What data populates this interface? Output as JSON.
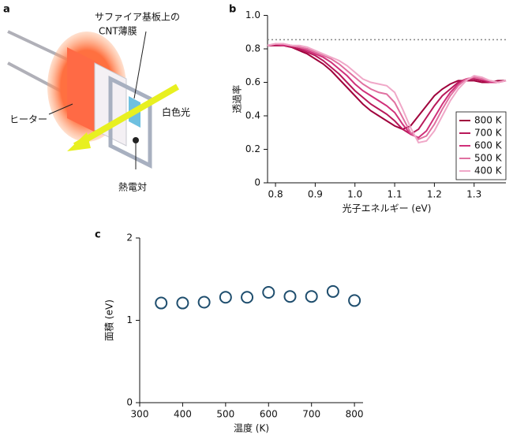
{
  "diagram": {
    "panel_label": "a",
    "substrate_label": [
      "サファイア基板上の",
      "CNT薄膜"
    ],
    "heater_label": "ヒーター",
    "light_label": "白色光",
    "thermocouple_label": "熱電対"
  },
  "chart_data": [
    {
      "type": "line",
      "panel_label": "b",
      "xlabel": "光子エネルギー (eV)",
      "ylabel": "透過率",
      "x": [
        0.78,
        0.8,
        0.82,
        0.84,
        0.86,
        0.88,
        0.9,
        0.92,
        0.94,
        0.96,
        0.98,
        1.0,
        1.02,
        1.04,
        1.06,
        1.08,
        1.1,
        1.12,
        1.14,
        1.16,
        1.18,
        1.2,
        1.22,
        1.24,
        1.26,
        1.28,
        1.3,
        1.32,
        1.34,
        1.36,
        1.38
      ],
      "series": [
        {
          "name": "800 K",
          "color": "#a0003c",
          "values": [
            0.82,
            0.82,
            0.82,
            0.81,
            0.79,
            0.77,
            0.74,
            0.71,
            0.67,
            0.62,
            0.57,
            0.52,
            0.47,
            0.43,
            0.4,
            0.37,
            0.34,
            0.32,
            0.34,
            0.4,
            0.46,
            0.52,
            0.56,
            0.59,
            0.61,
            0.61,
            0.61,
            0.6,
            0.6,
            0.61,
            0.61
          ]
        },
        {
          "name": "700 K",
          "color": "#b8185a",
          "values": [
            0.82,
            0.82,
            0.82,
            0.81,
            0.8,
            0.78,
            0.76,
            0.73,
            0.69,
            0.65,
            0.6,
            0.55,
            0.51,
            0.47,
            0.44,
            0.41,
            0.37,
            0.32,
            0.29,
            0.32,
            0.39,
            0.46,
            0.52,
            0.56,
            0.6,
            0.62,
            0.62,
            0.61,
            0.6,
            0.6,
            0.61
          ]
        },
        {
          "name": "600 K",
          "color": "#d0307a",
          "values": [
            0.82,
            0.83,
            0.82,
            0.82,
            0.81,
            0.79,
            0.77,
            0.75,
            0.72,
            0.68,
            0.64,
            0.59,
            0.55,
            0.52,
            0.49,
            0.46,
            0.42,
            0.35,
            0.29,
            0.27,
            0.31,
            0.39,
            0.47,
            0.54,
            0.59,
            0.62,
            0.63,
            0.62,
            0.6,
            0.6,
            0.61
          ]
        },
        {
          "name": "500 K",
          "color": "#e070a0",
          "values": [
            0.82,
            0.83,
            0.83,
            0.82,
            0.81,
            0.8,
            0.78,
            0.76,
            0.74,
            0.71,
            0.67,
            0.63,
            0.59,
            0.56,
            0.54,
            0.53,
            0.48,
            0.39,
            0.3,
            0.26,
            0.28,
            0.35,
            0.44,
            0.52,
            0.58,
            0.62,
            0.63,
            0.62,
            0.61,
            0.6,
            0.61
          ]
        },
        {
          "name": "400 K",
          "color": "#f0a8c8",
          "values": [
            0.82,
            0.83,
            0.83,
            0.82,
            0.82,
            0.81,
            0.79,
            0.77,
            0.75,
            0.73,
            0.7,
            0.66,
            0.62,
            0.6,
            0.59,
            0.58,
            0.54,
            0.44,
            0.33,
            0.24,
            0.25,
            0.31,
            0.4,
            0.49,
            0.56,
            0.61,
            0.64,
            0.63,
            0.61,
            0.6,
            0.61
          ]
        }
      ],
      "xlim": [
        0.78,
        1.38
      ],
      "xticks": [
        0.8,
        0.9,
        {
          "value": 1,
          "label": "1.0"
        },
        1.1,
        1.2,
        1.3
      ],
      "ylim": [
        0,
        1
      ],
      "yticks": [
        0,
        0.2,
        0.4,
        0.6,
        0.8,
        {
          "value": 1,
          "label": "1.0"
        }
      ],
      "reference_y": 0.855,
      "reference_color": "#888888",
      "legend": "lower right"
    },
    {
      "type": "scatter",
      "panel_label": "c",
      "xlabel": "温度 (K)",
      "ylabel": "面積 (eV)",
      "x": [
        350,
        400,
        450,
        500,
        550,
        600,
        650,
        700,
        750,
        800
      ],
      "values": [
        1.21,
        1.21,
        1.22,
        1.28,
        1.28,
        1.34,
        1.29,
        1.29,
        1.35,
        1.24
      ],
      "color": "#1f4e6e",
      "xlim": [
        300,
        820
      ],
      "xticks": [
        300,
        400,
        500,
        600,
        700,
        800
      ],
      "ylim": [
        0,
        2
      ],
      "yticks": [
        0,
        1,
        2
      ]
    }
  ]
}
